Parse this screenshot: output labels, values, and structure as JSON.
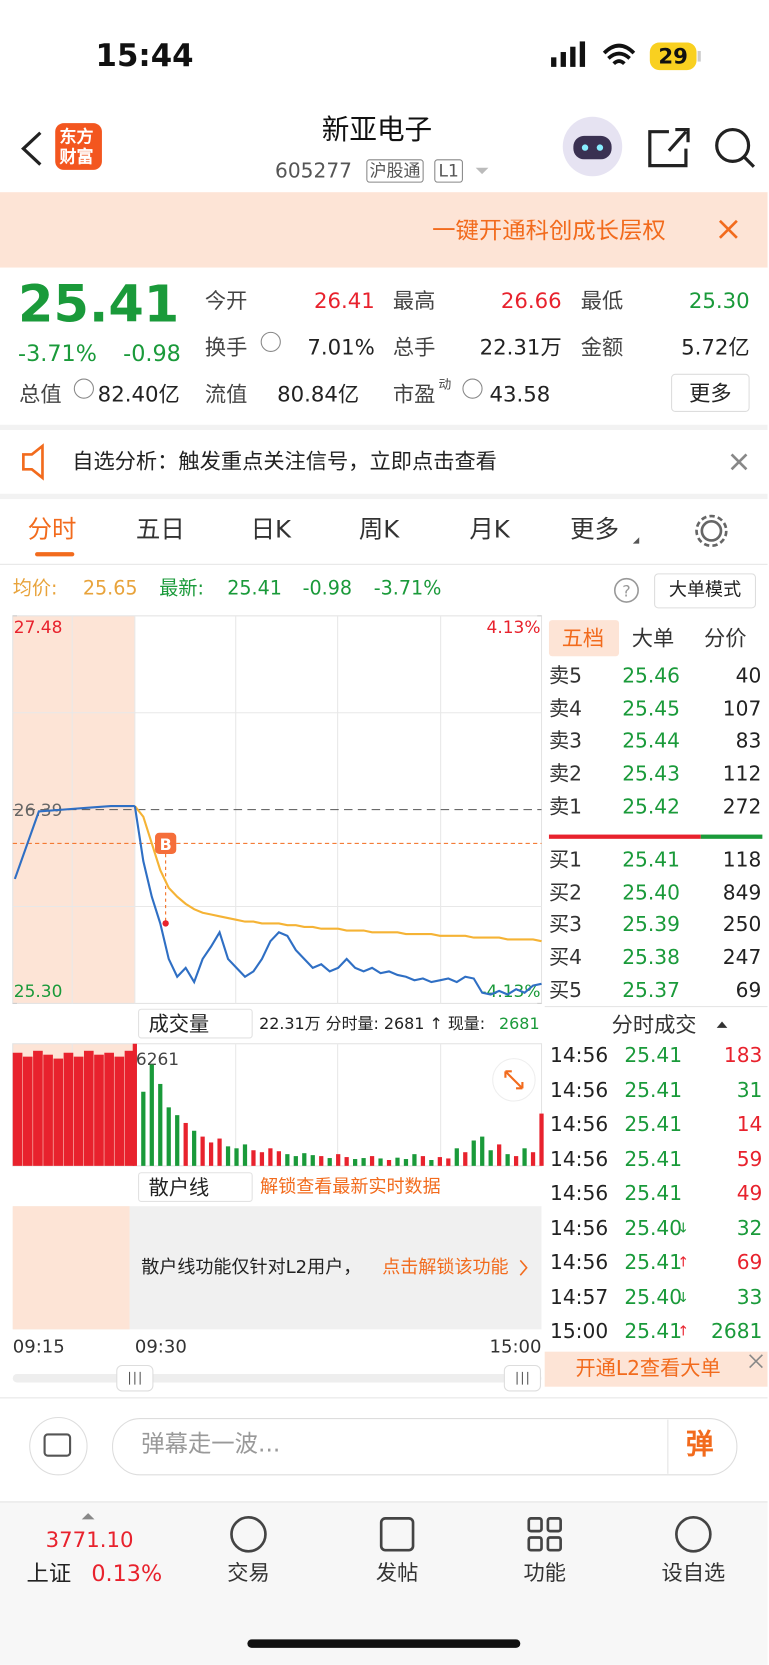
{
  "status_bar": {
    "time": "15:44",
    "battery": "29"
  },
  "header": {
    "logo_line1": "东方",
    "logo_line2": "财富",
    "name": "新亚电子",
    "code": "605277",
    "tag1": "沪股通",
    "tag2": "L1"
  },
  "banner": {
    "text": "一键开通科创成长层权"
  },
  "quote": {
    "price": "25.41",
    "change_pct": "-3.71%",
    "change": "-0.98",
    "fields": [
      {
        "label": "今开",
        "value": "26.41",
        "color": "#e8222d"
      },
      {
        "label": "最高",
        "value": "26.66",
        "color": "#e8222d"
      },
      {
        "label": "最低",
        "value": "25.30",
        "color": "#1a9a3a"
      },
      {
        "label": "换手",
        "value": "7.01%",
        "color": "#222"
      },
      {
        "label": "总手",
        "value": "22.31万",
        "color": "#222"
      },
      {
        "label": "金额",
        "value": "5.72亿",
        "color": "#222"
      }
    ],
    "mcap_label": "总值",
    "mcap": "82.40亿",
    "float_label": "流值",
    "float": "80.84亿",
    "pe_label": "市盈",
    "pe_sup": "动",
    "pe": "43.58",
    "more": "更多"
  },
  "notice": {
    "text": "自选分析：触发重点关注信号，立即点击查看"
  },
  "tabs": [
    "分时",
    "五日",
    "日K",
    "周K",
    "月K",
    "更多"
  ],
  "info_line": {
    "avg_label": "均价:",
    "avg": "25.65",
    "latest_label": "最新:",
    "latest": "25.41",
    "change": "-0.98",
    "pct": "-3.71%",
    "mode": "大单模式"
  },
  "intraday": {
    "ylim": [
      25.3,
      27.48
    ],
    "yticks": [
      {
        "value": 27.48,
        "label": "27.48"
      },
      {
        "value": 26.39,
        "label": "26.39"
      },
      {
        "value": 25.3,
        "label": "25.30"
      }
    ],
    "pct_ticks": [
      {
        "value": 27.48,
        "label": "4.13%"
      },
      {
        "value": 25.3,
        "label": "-4.13%"
      }
    ],
    "xticks": [
      "09:15",
      "09:30",
      "15:00"
    ],
    "auction_price": [
      26.0,
      26.38,
      26.39,
      26.4,
      26.41,
      26.41
    ],
    "price": [
      26.41,
      26.1,
      25.9,
      25.75,
      25.55,
      25.45,
      25.5,
      25.42,
      25.55,
      25.62,
      25.7,
      25.55,
      25.5,
      25.45,
      25.48,
      25.55,
      25.65,
      25.7,
      25.68,
      25.6,
      25.55,
      25.5,
      25.52,
      25.48,
      25.5,
      25.55,
      25.5,
      25.48,
      25.5,
      25.47,
      25.48,
      25.46,
      25.45,
      25.43,
      25.44,
      25.42,
      25.43,
      25.44,
      25.42,
      25.45,
      25.44,
      25.36,
      25.35,
      25.37,
      25.35,
      25.38,
      25.36,
      25.4,
      25.41
    ],
    "avg": [
      26.41,
      26.35,
      26.2,
      26.05,
      25.95,
      25.9,
      25.86,
      25.83,
      25.81,
      25.8,
      25.79,
      25.78,
      25.77,
      25.76,
      25.76,
      25.75,
      25.75,
      25.75,
      25.74,
      25.74,
      25.73,
      25.73,
      25.72,
      25.72,
      25.72,
      25.71,
      25.71,
      25.71,
      25.7,
      25.7,
      25.7,
      25.7,
      25.69,
      25.69,
      25.69,
      25.69,
      25.68,
      25.68,
      25.68,
      25.68,
      25.67,
      25.67,
      25.67,
      25.67,
      25.66,
      25.66,
      25.66,
      25.66,
      25.65
    ],
    "buy_marker": {
      "label": "B",
      "price": 26.2
    },
    "up_color": "#e8222d",
    "down_color": "#1a9a3a",
    "price_color": "#2f6fc4",
    "avg_color": "#f5b335"
  },
  "volume": {
    "selector": "成交量",
    "stats": "22.31万 分时量: 2681 ↑ 现量: ",
    "current": "2681",
    "ylim": [
      0,
      6261
    ],
    "auction": [
      5800,
      5600,
      5900,
      5700,
      5500,
      5800,
      5600,
      5900,
      5700,
      5800,
      5600,
      5900
    ],
    "values": [
      6261,
      3800,
      5200,
      4200,
      3000,
      2600,
      2200,
      1800,
      1500,
      1200,
      1400,
      1000,
      900,
      1100,
      800,
      700,
      900,
      750,
      600,
      500,
      650,
      550,
      500,
      400,
      600,
      450,
      350,
      400,
      500,
      380,
      300,
      420,
      350,
      600,
      500,
      300,
      450,
      380,
      900,
      700,
      1300,
      1500,
      800,
      1100,
      600,
      500,
      900,
      700,
      2681
    ]
  },
  "retail": {
    "selector": "散户线",
    "unlock": "解锁查看最新实时数据",
    "message": "散户线功能仅针对L2用户，",
    "link": "点击解锁该功能"
  },
  "order_book": {
    "tabs": [
      "五档",
      "大单",
      "分价"
    ],
    "asks": [
      {
        "label": "卖5",
        "price": "25.46",
        "vol": "40"
      },
      {
        "label": "卖4",
        "price": "25.45",
        "vol": "107"
      },
      {
        "label": "卖3",
        "price": "25.44",
        "vol": "83"
      },
      {
        "label": "卖2",
        "price": "25.43",
        "vol": "112"
      },
      {
        "label": "卖1",
        "price": "25.42",
        "vol": "272"
      }
    ],
    "bids": [
      {
        "label": "买1",
        "price": "25.41",
        "vol": "118"
      },
      {
        "label": "买2",
        "price": "25.40",
        "vol": "849"
      },
      {
        "label": "买3",
        "price": "25.39",
        "vol": "250"
      },
      {
        "label": "买4",
        "price": "25.38",
        "vol": "247"
      },
      {
        "label": "买5",
        "price": "25.37",
        "vol": "69"
      }
    ]
  },
  "trades": {
    "title": "分时成交",
    "rows": [
      {
        "time": "14:56",
        "price": "25.41",
        "vol": "183",
        "color": "#e8222d"
      },
      {
        "time": "14:56",
        "price": "25.41",
        "vol": "31",
        "color": "#1a9a3a"
      },
      {
        "time": "14:56",
        "price": "25.41",
        "vol": "14",
        "color": "#e8222d"
      },
      {
        "time": "14:56",
        "price": "25.41",
        "vol": "59",
        "color": "#e8222d"
      },
      {
        "time": "14:56",
        "price": "25.41",
        "vol": "49",
        "color": "#e8222d"
      },
      {
        "time": "14:56",
        "price": "25.40",
        "arrow": "↓",
        "vol": "32",
        "color": "#1a9a3a"
      },
      {
        "time": "14:56",
        "price": "25.41",
        "arrow": "↑",
        "vol": "69",
        "color": "#e8222d"
      },
      {
        "time": "14:57",
        "price": "25.40",
        "arrow": "↓",
        "vol": "33",
        "color": "#1a9a3a"
      },
      {
        "time": "15:00",
        "price": "25.41",
        "arrow": "↑",
        "vol": "2681",
        "color": "#1a9a3a"
      }
    ],
    "l2": "开通L2查看大单"
  },
  "comment": {
    "placeholder": "弹幕走一波...",
    "button": "弹"
  },
  "bottom_nav": {
    "index_value": "3771.10",
    "index_name": "上证",
    "index_pct": "0.13%",
    "items": [
      "交易",
      "发帖",
      "功能",
      "设自选"
    ]
  }
}
